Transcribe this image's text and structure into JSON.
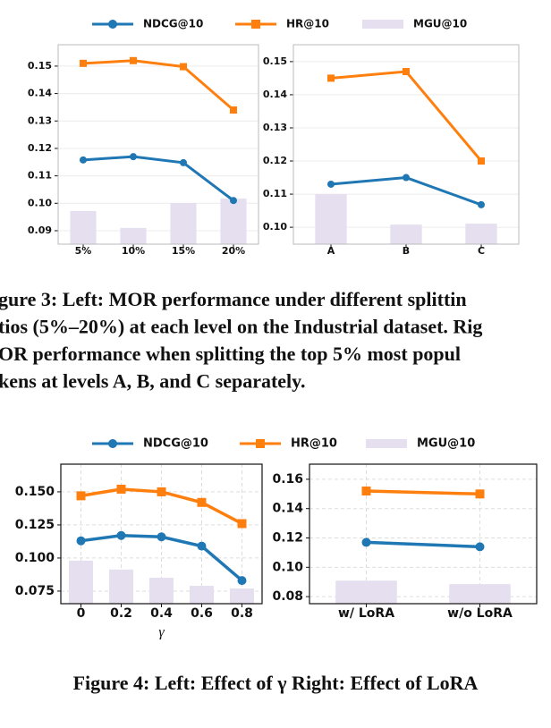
{
  "chart_data": [
    {
      "type": "bar-line",
      "categories": [
        "5%",
        "10%",
        "15%",
        "20%"
      ],
      "series": [
        {
          "name": "MGU@10",
          "type": "bar",
          "color": "#e6dff0",
          "values": [
            0.0972,
            0.091,
            0.1001,
            0.1017
          ]
        },
        {
          "name": "NDCG@10",
          "type": "line",
          "marker": "circle",
          "color": "#1f77b4",
          "values": [
            0.1158,
            0.117,
            0.1148,
            0.101
          ]
        },
        {
          "name": "HR@10",
          "type": "line",
          "marker": "square",
          "color": "#ff7f0e",
          "values": [
            0.151,
            0.152,
            0.1498,
            0.134
          ]
        }
      ],
      "ylim": [
        0.0851,
        0.1578
      ],
      "yticks": [
        0.09,
        {
          "value": 0.1,
          "label": "0.10"
        },
        0.11,
        0.12,
        0.13,
        0.14,
        0.15
      ],
      "grid": true
    },
    {
      "type": "bar-line",
      "categories": [
        "A",
        "B",
        "C"
      ],
      "series": [
        {
          "name": "MGU@10",
          "type": "bar",
          "color": "#e6dff0",
          "values": [
            0.11,
            0.1008,
            0.1011
          ]
        },
        {
          "name": "NDCG@10",
          "type": "line",
          "marker": "circle",
          "color": "#1f77b4",
          "values": [
            0.113,
            0.115,
            0.1068
          ]
        },
        {
          "name": "HR@10",
          "type": "line",
          "marker": "square",
          "color": "#ff7f0e",
          "values": [
            0.145,
            0.147,
            0.12
          ]
        }
      ],
      "ylim": [
        0.0949,
        0.1551
      ],
      "yticks": [
        {
          "value": 0.1,
          "label": "0.10"
        },
        0.11,
        0.12,
        0.13,
        0.14,
        0.15
      ],
      "grid": true
    },
    {
      "type": "bar-line",
      "categories": [
        "0",
        "0.2",
        "0.4",
        "0.6",
        "0.8"
      ],
      "xlabel": "γ",
      "series": [
        {
          "name": "MGU@10",
          "type": "bar",
          "color": "#e6dff0",
          "values": [
            0.098,
            0.0913,
            0.0851,
            0.079,
            0.077
          ]
        },
        {
          "name": "NDCG@10",
          "type": "line",
          "marker": "circle",
          "color": "#1f77b4",
          "values": [
            0.113,
            0.117,
            0.116,
            0.109,
            0.083
          ]
        },
        {
          "name": "HR@10",
          "type": "line",
          "marker": "square",
          "color": "#ff7f0e",
          "values": [
            0.147,
            0.152,
            0.15,
            0.142,
            0.126
          ]
        }
      ],
      "ylim": [
        0.0655,
        0.1709
      ],
      "yticks": [
        0.075,
        {
          "value": 0.1,
          "label": "0.100"
        },
        0.125,
        {
          "value": 0.15,
          "label": "0.150"
        }
      ],
      "grid": true
    },
    {
      "type": "bar-line",
      "categories": [
        "w/ LoRA",
        "w/o LoRA"
      ],
      "series": [
        {
          "name": "MGU@10",
          "type": "bar",
          "color": "#e6dff0",
          "values": [
            0.0909,
            0.0885
          ]
        },
        {
          "name": "NDCG@10",
          "type": "line",
          "marker": "circle",
          "color": "#1f77b4",
          "values": [
            0.117,
            0.114
          ]
        },
        {
          "name": "HR@10",
          "type": "line",
          "marker": "square",
          "color": "#ff7f0e",
          "values": [
            0.152,
            0.15
          ]
        }
      ],
      "ylim": [
        0.0752,
        0.1703
      ],
      "yticks": [
        0.08,
        {
          "value": 0.1,
          "label": "0.10"
        },
        0.12,
        0.14,
        0.16
      ],
      "grid": true
    }
  ],
  "captions": {
    "figure3": [
      "gure 3: Left: MOR performance under different splittin",
      "tios (5%–20%) at each level on the Industrial dataset. Rig",
      "OR performance when splitting the top 5% most popul",
      "kens at levels A, B, and C separately."
    ],
    "figure4": "Figure 4: Left: Effect of γ Right: Effect of LoRA"
  }
}
